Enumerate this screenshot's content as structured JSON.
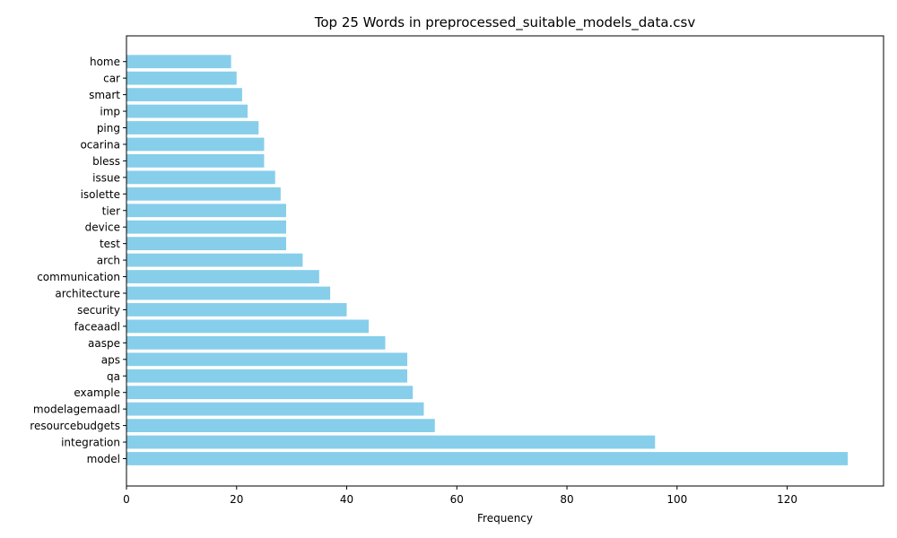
{
  "chart_data": {
    "type": "bar",
    "orientation": "horizontal",
    "title": "Top 25 Words in preprocessed_suitable_models_data.csv",
    "xlabel": "Frequency",
    "ylabel": "",
    "xlim": [
      0,
      137.5
    ],
    "xticks": [
      0,
      20,
      40,
      60,
      80,
      100,
      120
    ],
    "grid": false,
    "bar_color": "#87CEEB",
    "categories": [
      "model",
      "integration",
      "resourcebudgets",
      "modelagemaadl",
      "example",
      "qa",
      "aps",
      "aaspe",
      "faceaadl",
      "security",
      "architecture",
      "communication",
      "arch",
      "test",
      "device",
      "tier",
      "isolette",
      "issue",
      "bless",
      "ocarina",
      "ping",
      "imp",
      "smart",
      "car",
      "home"
    ],
    "values": [
      131,
      96,
      56,
      54,
      52,
      51,
      51,
      47,
      44,
      40,
      37,
      35,
      32,
      29,
      29,
      29,
      28,
      27,
      25,
      25,
      24,
      22,
      21,
      20,
      19
    ]
  }
}
